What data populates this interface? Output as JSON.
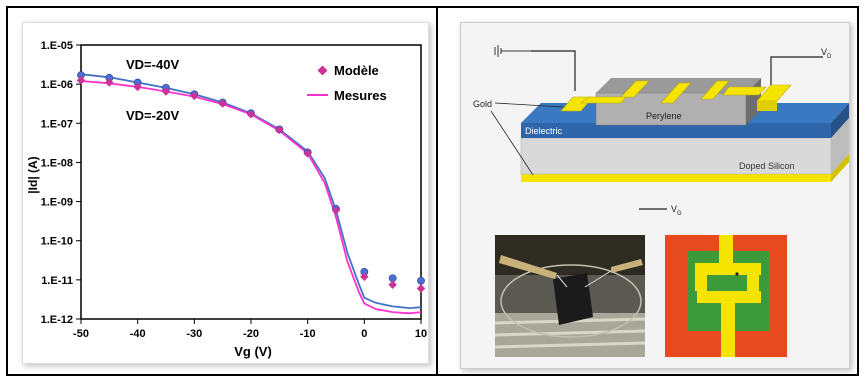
{
  "chart_data": {
    "type": "line",
    "title": "",
    "xlabel": "Vg (V)",
    "ylabel": "|Id| (A)",
    "xlim": [
      -50,
      10
    ],
    "ylim_log10": [
      -12,
      -5
    ],
    "y_scale": "log",
    "x_ticks": [
      -50,
      -40,
      -30,
      -20,
      -10,
      0,
      10
    ],
    "x_tick_labels": [
      "-50",
      "-40",
      "-30",
      "-20",
      "-10",
      "0",
      "10"
    ],
    "y_ticks": [
      1e-12,
      1e-11,
      1e-10,
      1e-09,
      1e-08,
      1e-07,
      1e-06,
      1e-05
    ],
    "y_tick_labels": [
      "1.E-12",
      "1.E-11",
      "1.E-10",
      "1.E-09",
      "1.E-08",
      "1.E-07",
      "1.E-06",
      "1.E-05"
    ],
    "grid": false,
    "legend_position": "top-right",
    "legend": [
      "Modèle",
      "Mesures"
    ],
    "annotations": [
      "VD=-40V",
      "VD=-20V"
    ],
    "series": [
      {
        "name": "Mesures",
        "kind": "line",
        "color": "#4472c4",
        "x": [
          -50,
          -45,
          -40,
          -35,
          -30,
          -25,
          -20,
          -15,
          -10,
          -7,
          -5,
          -3,
          -1,
          0,
          2,
          5,
          8,
          10
        ],
        "y": [
          1.8e-06,
          1.5e-06,
          1.1e-06,
          8e-07,
          5.5e-07,
          3.4e-07,
          1.8e-07,
          7e-08,
          1.9e-08,
          4e-09,
          6e-10,
          5e-11,
          8e-12,
          3.5e-12,
          2.6e-12,
          2.1e-12,
          1.9e-12,
          2e-12
        ]
      },
      {
        "name": "Mesures",
        "kind": "line",
        "color": "#ff33cc",
        "x": [
          -50,
          -45,
          -40,
          -35,
          -30,
          -25,
          -20,
          -15,
          -10,
          -7,
          -5,
          -3,
          -1,
          0,
          2,
          5,
          8,
          10
        ],
        "y": [
          1.2e-06,
          1.05e-06,
          8.5e-07,
          6.5e-07,
          4.8e-07,
          3.1e-07,
          1.7e-07,
          6.5e-08,
          1.7e-08,
          3e-09,
          4e-10,
          3e-11,
          5e-12,
          2.5e-12,
          1.8e-12,
          1.5e-12,
          1.4e-12,
          1.5e-12
        ]
      },
      {
        "name": "Modèle",
        "kind": "scatter",
        "marker": "circle",
        "color": "#4a6fd6",
        "x": [
          -50,
          -45,
          -40,
          -35,
          -30,
          -25,
          -20,
          -15,
          -10,
          -5,
          0,
          5,
          10
        ],
        "y": [
          1.7e-06,
          1.45e-06,
          1.1e-06,
          8e-07,
          5.5e-07,
          3.4e-07,
          1.8e-07,
          7e-08,
          1.8e-08,
          6.5e-10,
          1.6e-11,
          1.1e-11,
          9.5e-12
        ]
      },
      {
        "name": "Modèle",
        "kind": "scatter",
        "marker": "diamond",
        "color": "#cc3399",
        "x": [
          -50,
          -45,
          -40,
          -35,
          -30,
          -25,
          -20,
          -15,
          -10,
          -5,
          0,
          5,
          10
        ],
        "y": [
          1.25e-06,
          1.1e-06,
          8.5e-07,
          6.5e-07,
          5e-07,
          3.2e-07,
          1.7e-07,
          6.8e-08,
          1.7e-08,
          6e-10,
          1.2e-11,
          7.5e-12,
          6e-12
        ]
      }
    ]
  },
  "diagram": {
    "gold_label": "Gold",
    "perylene_label": "Perylene",
    "dielectric_label": "Dielectric",
    "doped_silicon_label": "Doped Silicon",
    "vd_label": "V",
    "vd_sub": "D",
    "vg_label": "V",
    "vg_sub": "G"
  },
  "colors": {
    "gold": "#f5e400",
    "dielectric": "#3a78c2",
    "silicon": "#d9d9d9",
    "perylene": "#8c8c8c",
    "photo_bg_right": "#e84a1f",
    "device_green": "#3d9a3a"
  }
}
